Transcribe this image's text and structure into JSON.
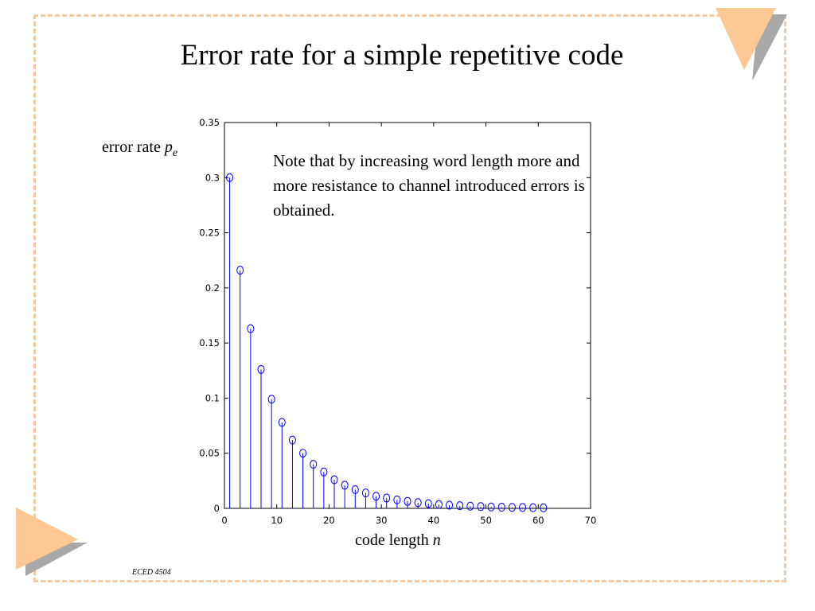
{
  "slide": {
    "title": "Error rate for a simple repetitive code",
    "note": "Note that by increasing word length more and more resistance to channel introduced errors is obtained.",
    "ylabel_prefix": "error rate ",
    "ylabel_var": "p",
    "ylabel_sub": "e",
    "xlabel_prefix": "code length ",
    "xlabel_var": "n",
    "footer": "ECED 4504",
    "accent_color": "#fdc894",
    "frame_color": "#f5c8a0",
    "shadow_color": "#a8a8a8"
  },
  "chart_data": {
    "type": "stem",
    "title": "",
    "xlabel": "code length n",
    "ylabel": "error rate p_e",
    "xlim": [
      0,
      70
    ],
    "ylim": [
      0,
      0.35
    ],
    "xticks": [
      "0",
      "10",
      "20",
      "30",
      "40",
      "50",
      "60",
      "70"
    ],
    "yticks": [
      "0",
      "0.05",
      "0.1",
      "0.15",
      "0.2",
      "0.25",
      "0.3",
      "0.35"
    ],
    "marker": "circle",
    "color": "#0000ff",
    "grid": false,
    "x": [
      1,
      3,
      5,
      7,
      9,
      11,
      13,
      15,
      17,
      19,
      21,
      23,
      25,
      27,
      29,
      31,
      33,
      35,
      37,
      39,
      41,
      43,
      45,
      47,
      49,
      51,
      53,
      55,
      57,
      59,
      61
    ],
    "y": [
      0.3,
      0.216,
      0.163,
      0.126,
      0.099,
      0.078,
      0.062,
      0.05,
      0.04,
      0.033,
      0.026,
      0.021,
      0.017,
      0.014,
      0.011,
      0.0094,
      0.0077,
      0.0063,
      0.0052,
      0.0043,
      0.0035,
      0.0029,
      0.0024,
      0.002,
      0.0016,
      0.0013,
      0.0011,
      0.0009,
      0.0008,
      0.0006,
      0.0005
    ]
  }
}
